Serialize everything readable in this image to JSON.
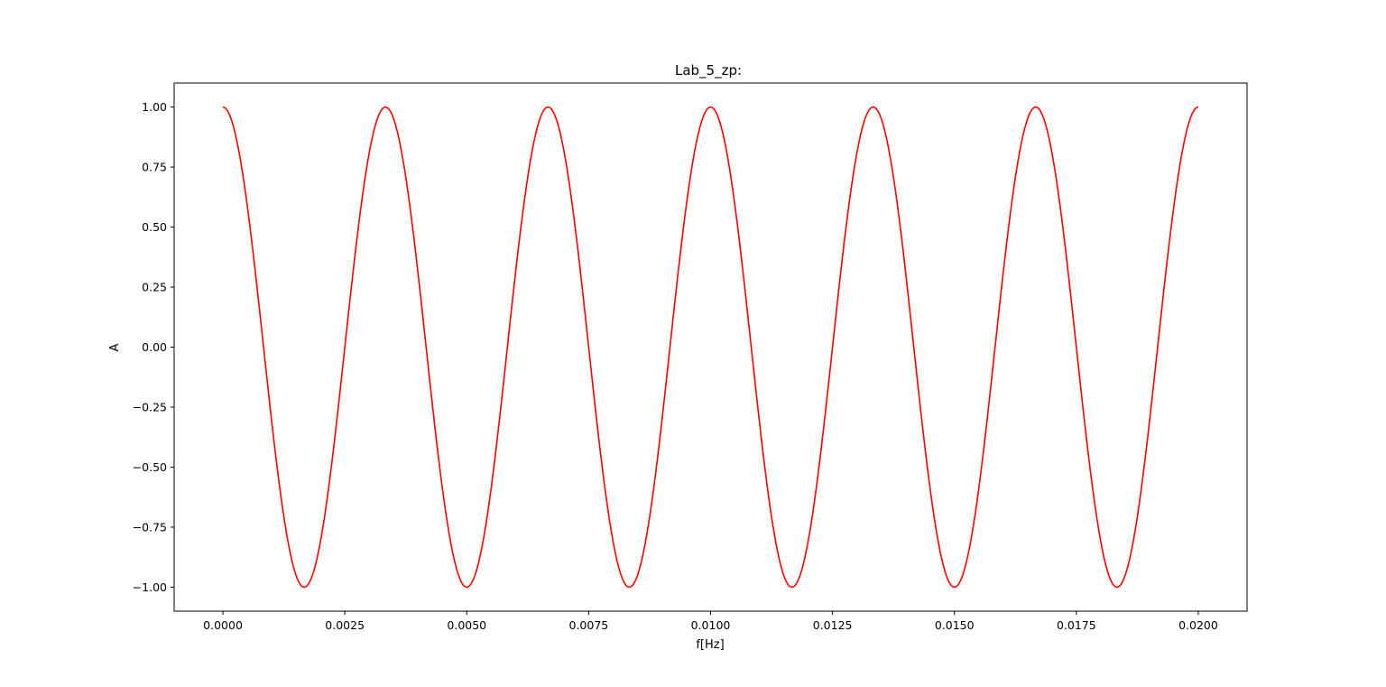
{
  "chart_data": {
    "type": "line",
    "title": "Lab_5_zp:",
    "xlabel": "f[Hz]",
    "ylabel": "A",
    "xlim": [
      -0.001,
      0.021
    ],
    "ylim": [
      -1.1,
      1.1
    ],
    "xticks": [
      0.0,
      0.0025,
      0.005,
      0.0075,
      0.01,
      0.0125,
      0.015,
      0.0175,
      0.02
    ],
    "xtick_labels": [
      "0.0000",
      "0.0025",
      "0.0050",
      "0.0075",
      "0.0100",
      "0.0125",
      "0.0150",
      "0.0175",
      "0.0200"
    ],
    "yticks": [
      1.0,
      0.75,
      0.5,
      0.25,
      0.0,
      -0.25,
      -0.5,
      -0.75,
      -1.0
    ],
    "ytick_labels": [
      "1.00",
      "0.75",
      "0.50",
      "0.25",
      "0.00",
      "−0.25",
      "−0.50",
      "−0.75",
      "−1.00"
    ],
    "grid": false,
    "series": [
      {
        "color": "#ff0000",
        "function": "cos",
        "frequency": 300,
        "amplitude": 1.0,
        "x_start": 0.0,
        "x_end": 0.02
      }
    ]
  }
}
